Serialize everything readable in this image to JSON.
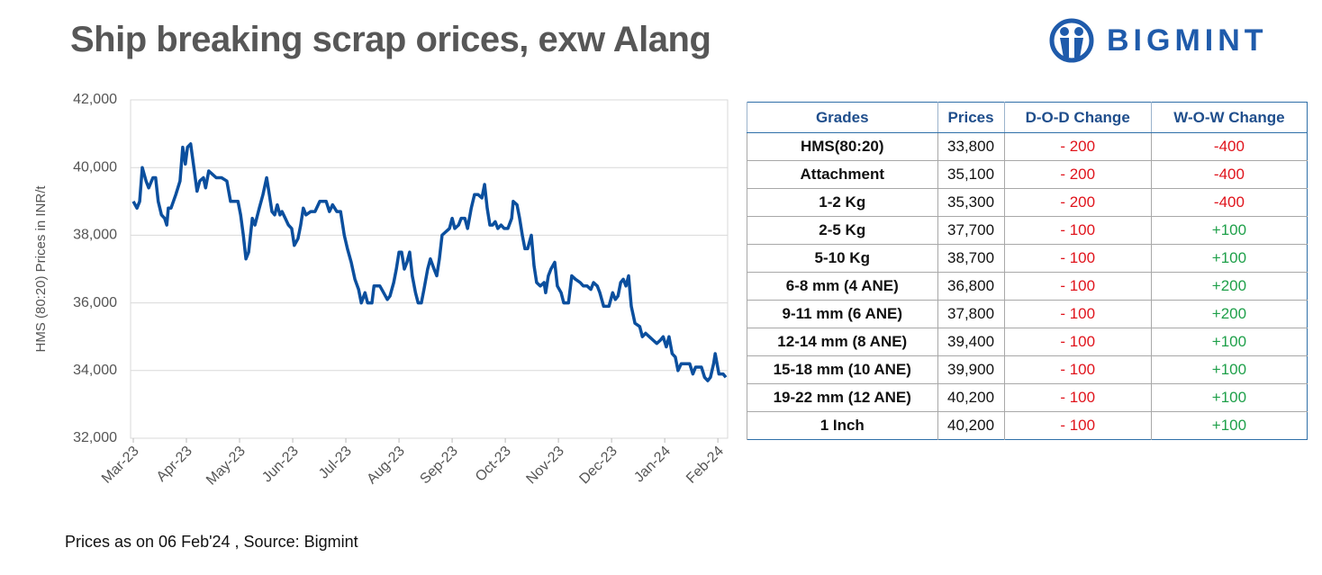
{
  "chart_data": {
    "type": "line",
    "title": "Ship breaking scrap orices, exw Alang",
    "ylabel": "HMS (80:20) Prices in INR/t",
    "color": "#0b4f9e",
    "grid": true,
    "xlim": [
      0,
      11.15
    ],
    "ylim": [
      32000,
      42000
    ],
    "xticks": [
      {
        "value": 0,
        "label": "Mar-23"
      },
      {
        "value": 1,
        "label": "Apr-23"
      },
      {
        "value": 2,
        "label": "May-23"
      },
      {
        "value": 3,
        "label": "Jun-23"
      },
      {
        "value": 4,
        "label": "Jul-23"
      },
      {
        "value": 5,
        "label": "Aug-23"
      },
      {
        "value": 6,
        "label": "Sep-23"
      },
      {
        "value": 7,
        "label": "Oct-23"
      },
      {
        "value": 8,
        "label": "Nov-23"
      },
      {
        "value": 9,
        "label": "Dec-23"
      },
      {
        "value": 10,
        "label": "Jan-24"
      },
      {
        "value": 11,
        "label": "Feb-24"
      }
    ],
    "yticks": [
      {
        "value": 32000,
        "label": "32,000"
      },
      {
        "value": 34000,
        "label": "34,000"
      },
      {
        "value": 36000,
        "label": "36,000"
      },
      {
        "value": 38000,
        "label": "38,000"
      },
      {
        "value": 40000,
        "label": "40,000"
      },
      {
        "value": 42000,
        "label": "42,000"
      }
    ],
    "x": [
      0,
      0.07,
      0.12,
      0.17,
      0.24,
      0.29,
      0.37,
      0.42,
      0.47,
      0.53,
      0.59,
      0.63,
      0.66,
      0.71,
      0.8,
      0.88,
      0.93,
      0.98,
      1.02,
      1.08,
      1.14,
      1.2,
      1.25,
      1.32,
      1.36,
      1.42,
      1.49,
      1.56,
      1.66,
      1.76,
      1.83,
      1.97,
      2.02,
      2.07,
      2.12,
      2.17,
      2.24,
      2.29,
      2.37,
      2.44,
      2.51,
      2.56,
      2.61,
      2.66,
      2.71,
      2.76,
      2.8,
      2.86,
      2.92,
      2.98,
      3.03,
      3.1,
      3.15,
      3.2,
      3.25,
      3.34,
      3.42,
      3.51,
      3.63,
      3.69,
      3.75,
      3.83,
      3.9,
      3.97,
      4.03,
      4.1,
      4.17,
      4.24,
      4.29,
      4.36,
      4.41,
      4.49,
      4.53,
      4.64,
      4.71,
      4.78,
      4.83,
      4.9,
      4.95,
      5,
      5.05,
      5.1,
      5.15,
      5.2,
      5.25,
      5.31,
      5.36,
      5.42,
      5.47,
      5.54,
      5.59,
      5.66,
      5.71,
      5.76,
      5.81,
      5.88,
      5.95,
      6,
      6.05,
      6.12,
      6.17,
      6.24,
      6.29,
      6.36,
      6.42,
      6.49,
      6.56,
      6.61,
      6.66,
      6.71,
      6.76,
      6.81,
      6.86,
      6.92,
      6.98,
      7.05,
      7.12,
      7.15,
      7.22,
      7.27,
      7.32,
      7.37,
      7.42,
      7.49,
      7.54,
      7.59,
      7.66,
      7.73,
      7.76,
      7.81,
      7.86,
      7.93,
      7.98,
      8.05,
      8.1,
      8.19,
      8.25,
      8.32,
      8.41,
      8.47,
      8.54,
      8.61,
      8.66,
      8.73,
      8.78,
      8.85,
      8.95,
      9.02,
      9.07,
      9.12,
      9.17,
      9.22,
      9.27,
      9.32,
      9.37,
      9.44,
      9.53,
      9.58,
      9.64,
      9.71,
      9.78,
      9.85,
      9.92,
      9.97,
      10.03,
      10.08,
      10.14,
      10.2,
      10.25,
      10.31,
      10.41,
      10.47,
      10.53,
      10.58,
      10.64,
      10.69,
      10.75,
      10.81,
      10.86,
      10.92,
      10.95,
      11.02,
      11.1,
      11.15
    ],
    "values": [
      39000,
      38800,
      39000,
      40000,
      39600,
      39400,
      39700,
      39700,
      39000,
      38600,
      38500,
      38300,
      38800,
      38800,
      39200,
      39600,
      40600,
      40100,
      40600,
      40700,
      40000,
      39300,
      39600,
      39700,
      39400,
      39900,
      39800,
      39700,
      39700,
      39600,
      39000,
      39000,
      38600,
      38000,
      37300,
      37500,
      38500,
      38300,
      38800,
      39200,
      39700,
      39200,
      38700,
      38600,
      38900,
      38600,
      38700,
      38500,
      38300,
      38200,
      37700,
      37900,
      38300,
      38800,
      38600,
      38700,
      38700,
      39000,
      39000,
      38700,
      38900,
      38700,
      38700,
      38000,
      37600,
      37200,
      36700,
      36400,
      36000,
      36300,
      36000,
      36000,
      36500,
      36500,
      36300,
      36100,
      36200,
      36600,
      37000,
      37500,
      37500,
      37000,
      37200,
      37500,
      36800,
      36300,
      36000,
      36000,
      36400,
      37000,
      37300,
      37000,
      36800,
      37300,
      38000,
      38100,
      38200,
      38500,
      38200,
      38300,
      38500,
      38500,
      38200,
      38800,
      39200,
      39200,
      39100,
      39500,
      38800,
      38300,
      38300,
      38400,
      38200,
      38300,
      38200,
      38200,
      38500,
      39000,
      38900,
      38500,
      38000,
      37600,
      37600,
      38000,
      37100,
      36600,
      36500,
      36600,
      36300,
      36800,
      37000,
      37200,
      36500,
      36300,
      36000,
      36000,
      36800,
      36700,
      36600,
      36500,
      36500,
      36400,
      36600,
      36500,
      36300,
      35900,
      35900,
      36300,
      36100,
      36200,
      36600,
      36700,
      36500,
      36800,
      35900,
      35400,
      35300,
      35000,
      35100,
      35000,
      34900,
      34800,
      34900,
      35000,
      34700,
      35000,
      34500,
      34400,
      34000,
      34200,
      34200,
      34200,
      33900,
      34100,
      34100,
      34100,
      33800,
      33700,
      33800,
      34200,
      34500,
      33900,
      33900,
      33800
    ]
  },
  "logo": "BIGMINT",
  "footnote": "Prices as on 06 Feb'24 , Source: Bigmint",
  "table": {
    "columns": [
      "Grades",
      "Prices",
      "D-O-D Change",
      "W-O-W Change"
    ],
    "rows": [
      [
        "HMS(80:20)",
        "33,800",
        "- 200",
        "-400"
      ],
      [
        "Attachment",
        "35,100",
        "- 200",
        "-400"
      ],
      [
        "1-2 Kg",
        "35,300",
        "- 200",
        "-400"
      ],
      [
        "2-5 Kg",
        "37,700",
        "- 100",
        "+100"
      ],
      [
        "5-10 Kg",
        "38,700",
        "- 100",
        "+100"
      ],
      [
        "6-8 mm (4 ANE)",
        "36,800",
        "- 100",
        "+200"
      ],
      [
        "9-11 mm (6 ANE)",
        "37,800",
        "- 100",
        "+200"
      ],
      [
        "12-14 mm (8 ANE)",
        "39,400",
        "- 100",
        "+100"
      ],
      [
        "15-18 mm (10 ANE)",
        "39,900",
        "- 100",
        "+100"
      ],
      [
        "19-22 mm (12 ANE)",
        "40,200",
        "- 100",
        "+100"
      ],
      [
        "1 Inch",
        "40,200",
        "- 100",
        "+100"
      ]
    ]
  }
}
